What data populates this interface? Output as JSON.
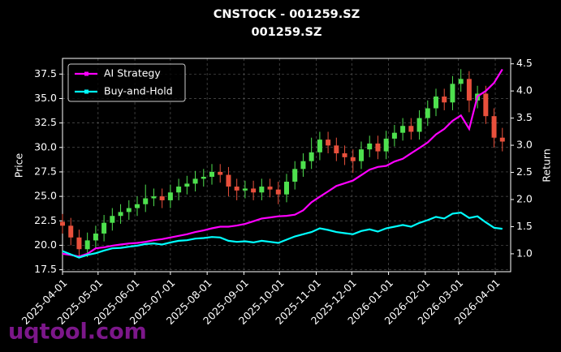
{
  "chart_data": {
    "type": "candlestick",
    "title": "CNSTOCK - 001259.SZ",
    "subtitle": "001259.SZ",
    "y_label": "Price",
    "y2_label": "Return",
    "watermark": "uqtool.com",
    "up_color": "#4ee04e",
    "down_color": "#e8503c",
    "grid": true,
    "legend": "upper left",
    "xlim": [
      "2025-04-01",
      "2026-04-14"
    ],
    "xticks": [
      "2025-04-01",
      "2025-05-01",
      "2025-06-01",
      "2025-07-01",
      "2025-08-01",
      "2025-09-01",
      "2025-10-01",
      "2025-11-01",
      "2025-12-01",
      "2026-01-01",
      "2026-02-01",
      "2026-03-01",
      "2026-04-01"
    ],
    "ylim": [
      17.3,
      39.1
    ],
    "yticks": [
      17.5,
      {
        "value": 20,
        "label": "20.0"
      },
      22.5,
      {
        "value": 25,
        "label": "25.0"
      },
      27.5,
      {
        "value": 30,
        "label": "30.0"
      },
      32.5,
      {
        "value": 35,
        "label": "35.0"
      },
      37.5
    ],
    "y2lim": [
      0.67,
      4.6
    ],
    "y2ticks": [
      {
        "value": 1,
        "label": "1.0"
      },
      1.5,
      {
        "value": 2,
        "label": "2.0"
      },
      2.5,
      {
        "value": 3,
        "label": "3.0"
      },
      3.5,
      {
        "value": 4,
        "label": "4.0"
      },
      4.5
    ],
    "x": [
      "2025-04-01",
      "2025-04-08",
      "2025-04-15",
      "2025-04-22",
      "2025-04-29",
      "2025-05-06",
      "2025-05-13",
      "2025-05-20",
      "2025-05-27",
      "2025-06-03",
      "2025-06-10",
      "2025-06-17",
      "2025-06-24",
      "2025-07-01",
      "2025-07-08",
      "2025-07-15",
      "2025-07-22",
      "2025-07-29",
      "2025-08-05",
      "2025-08-12",
      "2025-08-19",
      "2025-08-26",
      "2025-09-02",
      "2025-09-09",
      "2025-09-16",
      "2025-09-23",
      "2025-09-30",
      "2025-10-07",
      "2025-10-14",
      "2025-10-21",
      "2025-10-28",
      "2025-11-04",
      "2025-11-11",
      "2025-11-18",
      "2025-11-25",
      "2025-12-02",
      "2025-12-09",
      "2025-12-16",
      "2025-12-23",
      "2025-12-30",
      "2026-01-06",
      "2026-01-13",
      "2026-01-20",
      "2026-01-27",
      "2026-02-03",
      "2026-02-10",
      "2026-02-17",
      "2026-02-24",
      "2026-03-03",
      "2026-03-10",
      "2026-03-17",
      "2026-03-24",
      "2026-03-31",
      "2026-04-07"
    ],
    "open": [
      22.4,
      22.0,
      20.8,
      19.6,
      20.5,
      21.2,
      22.3,
      23.0,
      23.4,
      23.8,
      24.2,
      24.8,
      25.0,
      24.6,
      25.4,
      26.0,
      26.3,
      26.8,
      27.0,
      27.5,
      27.2,
      26.0,
      25.6,
      25.8,
      25.4,
      26.0,
      25.7,
      25.2,
      26.5,
      27.8,
      28.6,
      29.5,
      30.8,
      30.2,
      29.4,
      29.0,
      28.6,
      29.8,
      30.4,
      29.6,
      30.9,
      31.5,
      32.2,
      31.6,
      33.0,
      34.0,
      35.2,
      34.6,
      36.5,
      37.0,
      34.8,
      35.5,
      33.2,
      31.0
    ],
    "high": [
      23.2,
      22.8,
      21.6,
      21.3,
      22.0,
      23.1,
      23.8,
      24.2,
      24.6,
      25.0,
      26.2,
      25.8,
      25.8,
      26.2,
      26.8,
      27.1,
      27.6,
      27.8,
      28.3,
      28.3,
      28.0,
      26.8,
      26.6,
      26.6,
      26.8,
      26.8,
      26.5,
      27.3,
      28.6,
      29.4,
      31.0,
      31.6,
      31.6,
      31.0,
      30.2,
      29.8,
      30.6,
      31.2,
      31.2,
      31.7,
      32.3,
      33.0,
      33.0,
      33.8,
      34.8,
      36.0,
      36.0,
      37.3,
      38.0,
      37.8,
      36.3,
      36.3,
      34.0,
      32.0
    ],
    "low": [
      21.2,
      20.0,
      18.8,
      18.8,
      19.7,
      20.4,
      21.5,
      22.2,
      22.6,
      23.0,
      23.4,
      24.0,
      23.8,
      23.8,
      24.6,
      25.2,
      25.5,
      26.0,
      26.2,
      26.4,
      25.0,
      24.6,
      24.8,
      24.6,
      24.6,
      24.9,
      24.2,
      24.4,
      25.7,
      27.0,
      27.8,
      28.7,
      29.4,
      28.6,
      28.2,
      27.4,
      27.8,
      29.0,
      28.8,
      28.8,
      30.1,
      30.7,
      30.8,
      30.8,
      32.2,
      33.2,
      33.8,
      33.8,
      35.7,
      33.6,
      34.0,
      32.4,
      30.0,
      29.6
    ],
    "close": [
      22.0,
      20.8,
      19.6,
      20.5,
      21.2,
      22.3,
      23.0,
      23.4,
      23.8,
      24.2,
      24.8,
      25.0,
      24.6,
      25.4,
      26.0,
      26.3,
      26.8,
      27.0,
      27.5,
      27.2,
      26.0,
      25.6,
      25.8,
      25.4,
      26.0,
      25.7,
      25.2,
      26.5,
      27.8,
      28.6,
      29.5,
      30.8,
      30.2,
      29.4,
      29.0,
      28.6,
      29.8,
      30.4,
      29.6,
      30.9,
      31.5,
      32.2,
      31.6,
      33.0,
      34.0,
      35.2,
      34.6,
      36.5,
      37.0,
      34.8,
      35.5,
      33.2,
      31.0,
      30.6
    ],
    "series": [
      {
        "name": "AI Strategy",
        "color": "#ff00ff",
        "axis": "y2",
        "values": [
          1.0,
          0.98,
          0.95,
          1.0,
          1.1,
          1.12,
          1.15,
          1.17,
          1.19,
          1.2,
          1.22,
          1.25,
          1.27,
          1.3,
          1.33,
          1.36,
          1.4,
          1.43,
          1.47,
          1.5,
          1.5,
          1.52,
          1.55,
          1.6,
          1.65,
          1.67,
          1.69,
          1.7,
          1.72,
          1.8,
          1.95,
          2.05,
          2.15,
          2.25,
          2.3,
          2.35,
          2.45,
          2.55,
          2.6,
          2.62,
          2.7,
          2.75,
          2.85,
          2.95,
          3.05,
          3.2,
          3.3,
          3.45,
          3.55,
          3.3,
          3.9,
          4.0,
          4.15,
          4.4
        ]
      },
      {
        "name": "Buy-and-Hold",
        "color": "#00ffff",
        "axis": "y2",
        "values": [
          1.05,
          0.99,
          0.93,
          0.98,
          1.01,
          1.06,
          1.1,
          1.11,
          1.13,
          1.15,
          1.18,
          1.19,
          1.17,
          1.21,
          1.24,
          1.25,
          1.28,
          1.29,
          1.31,
          1.3,
          1.24,
          1.22,
          1.23,
          1.21,
          1.24,
          1.22,
          1.2,
          1.26,
          1.32,
          1.36,
          1.4,
          1.47,
          1.44,
          1.4,
          1.38,
          1.36,
          1.42,
          1.45,
          1.41,
          1.47,
          1.5,
          1.53,
          1.5,
          1.57,
          1.62,
          1.68,
          1.65,
          1.74,
          1.76,
          1.66,
          1.69,
          1.58,
          1.48,
          1.46
        ]
      }
    ]
  }
}
